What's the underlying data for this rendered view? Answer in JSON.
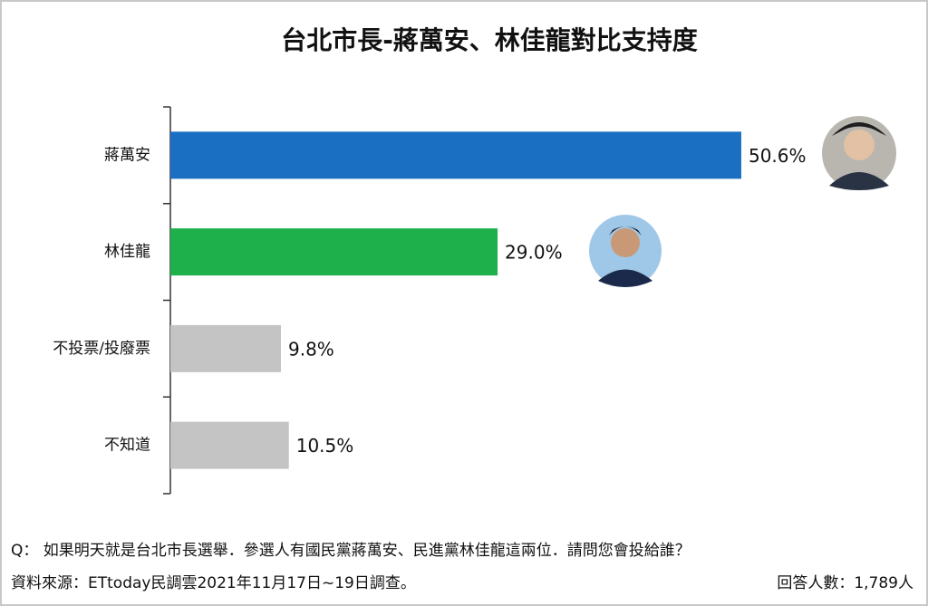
{
  "chart_data": {
    "type": "bar",
    "orientation": "horizontal",
    "title": "台北市長-蔣萬安、林佳龍對比支持度",
    "categories": [
      "蔣萬安",
      "林佳龍",
      "不投票/投廢票",
      "不知道"
    ],
    "values": [
      50.6,
      29.0,
      9.8,
      10.5
    ],
    "value_labels": [
      "50.6%",
      "29.0%",
      "9.8%",
      "10.5%"
    ],
    "colors": [
      "#1b6fc2",
      "#1db04b",
      "#c4c4c4",
      "#c4c4c4"
    ],
    "question": "Q： 如果明天就是台北市長選舉．參選人有國民黨蔣萬安、民進黨林佳龍這兩位．請問您會投給誰？",
    "source": "資料來源：ETtoday民調雲2021年11月17日~19日調查。",
    "respondents": "回答人數：1,789人"
  }
}
